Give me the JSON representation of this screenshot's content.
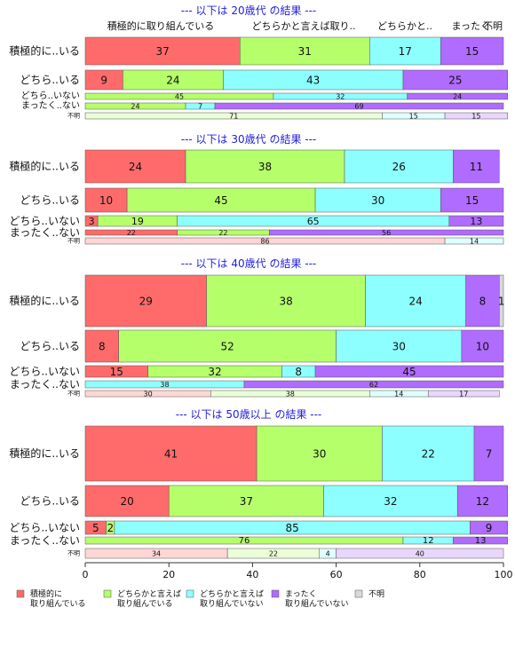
{
  "chart_data": {
    "type": "bar",
    "orientation": "horizontal",
    "stacked": true,
    "column_headers": [
      "積極的に取り組んでいる",
      "どちらかと言えば取り..",
      "どちらかと..",
      "まったく.",
      "不明"
    ],
    "xlim": [
      0,
      100
    ],
    "xticks": [
      0,
      20,
      40,
      60,
      80,
      100
    ],
    "categories": [
      {
        "key": "c1",
        "name": "積極的に取り組んでいる",
        "color": "#ff6b6b"
      },
      {
        "key": "c2",
        "name": "どちらかと言えば取り組んでいる",
        "color": "#b5ff6b"
      },
      {
        "key": "c3",
        "name": "どちらかと言えば取り組んでいない",
        "color": "#8dffff"
      },
      {
        "key": "c4",
        "name": "まったく取り組んでいない",
        "color": "#b06bff"
      },
      {
        "key": "c5",
        "name": "不明",
        "color": "#d9d9d9"
      }
    ],
    "legend": [
      {
        "label_lines": [
          "積極的に",
          "取り組んでいる"
        ],
        "color": "#ff6b6b"
      },
      {
        "label_lines": [
          "どちらかと言えば",
          "取り組んでいる"
        ],
        "color": "#b5ff6b"
      },
      {
        "label_lines": [
          "どちらかと言えば",
          "取り組んでいない"
        ],
        "color": "#8dffff"
      },
      {
        "label_lines": [
          "まったく",
          "取り組んでいない"
        ],
        "color": "#b06bff"
      },
      {
        "label_lines": [
          "不明"
        ],
        "color": "#d9d9d9"
      }
    ],
    "panels": [
      {
        "title": "--- 以下は 20歳代 の結果 ---",
        "rows": [
          {
            "label": "積極的に..いる",
            "values": [
              37,
              31,
              17,
              15,
              0
            ],
            "labels": [
              "37",
              "31",
              "17",
              "15",
              ""
            ]
          },
          {
            "label": "どちら..いる",
            "values": [
              9,
              24,
              43,
              25,
              0
            ],
            "labels": [
              "9",
              "24",
              "43",
              "25",
              ""
            ]
          },
          {
            "label": "どちら..いない",
            "values": [
              0,
              45,
              32,
              24,
              0
            ],
            "labels": [
              "",
              "45",
              "32",
              "24",
              ""
            ]
          },
          {
            "label": "まったく..ない",
            "values": [
              0,
              24,
              7,
              69,
              0
            ],
            "labels": [
              "",
              "24",
              "7",
              "69",
              ""
            ]
          },
          {
            "label": "不明",
            "values": [
              0,
              71,
              15,
              15,
              0
            ],
            "labels": [
              "",
              "71",
              "15",
              "15",
              ""
            ],
            "pale": true
          }
        ]
      },
      {
        "title": "--- 以下は 30歳代 の結果 ---",
        "rows": [
          {
            "label": "積極的に..いる",
            "values": [
              24,
              38,
              26,
              11,
              0
            ],
            "labels": [
              "24",
              "38",
              "26",
              "11",
              ""
            ]
          },
          {
            "label": "どちら..いる",
            "values": [
              10,
              45,
              30,
              15,
              0
            ],
            "labels": [
              "10",
              "45",
              "30",
              "15",
              ""
            ]
          },
          {
            "label": "どちら..いない",
            "values": [
              3,
              19,
              65,
              13,
              0
            ],
            "labels": [
              "3",
              "19",
              "65",
              "13",
              ""
            ]
          },
          {
            "label": "まったく..ない",
            "values": [
              22,
              22,
              0,
              56,
              0
            ],
            "labels": [
              "22",
              "22",
              "",
              "56",
              ""
            ]
          },
          {
            "label": "不明",
            "values": [
              86,
              0,
              14,
              0,
              0
            ],
            "labels": [
              "86",
              "",
              "14",
              "",
              ""
            ],
            "pale": true
          }
        ]
      },
      {
        "title": "--- 以下は 40歳代 の結果 ---",
        "rows": [
          {
            "label": "積極的に..いる",
            "values": [
              29,
              38,
              24,
              8,
              1
            ],
            "labels": [
              "29",
              "38",
              "24",
              "8",
              "1"
            ]
          },
          {
            "label": "どちら..いる",
            "values": [
              8,
              52,
              30,
              10,
              0
            ],
            "labels": [
              "8",
              "52",
              "30",
              "10",
              ""
            ]
          },
          {
            "label": "どちら..いない",
            "values": [
              15,
              32,
              8,
              45,
              0
            ],
            "labels": [
              "15",
              "32",
              "8",
              "45",
              ""
            ]
          },
          {
            "label": "まったく..ない",
            "values": [
              0,
              0,
              38,
              62,
              0
            ],
            "labels": [
              "",
              "",
              "38",
              "62",
              ""
            ]
          },
          {
            "label": "不明",
            "values": [
              30,
              38,
              14,
              17,
              0
            ],
            "labels": [
              "30",
              "38",
              "14",
              "17",
              ""
            ],
            "pale": true
          }
        ]
      },
      {
        "title": "--- 以下は 50歳以上 の結果 ---",
        "rows": [
          {
            "label": "積極的に..いる",
            "values": [
              41,
              30,
              22,
              7,
              0
            ],
            "labels": [
              "41",
              "30",
              "22",
              "7",
              ""
            ]
          },
          {
            "label": "どちら..いる",
            "values": [
              20,
              37,
              32,
              12,
              0
            ],
            "labels": [
              "20",
              "37",
              "32",
              "12",
              ""
            ]
          },
          {
            "label": "どちら..いない",
            "values": [
              5,
              2,
              85,
              9,
              0
            ],
            "labels": [
              "5",
              "2",
              "85",
              "9",
              ""
            ]
          },
          {
            "label": "まったく..ない",
            "values": [
              0,
              76,
              12,
              13,
              0
            ],
            "labels": [
              "",
              "76",
              "12",
              "13",
              ""
            ]
          },
          {
            "label": "不明",
            "values": [
              34,
              22,
              4,
              40,
              0
            ],
            "labels": [
              "34",
              "22",
              "4",
              "40",
              ""
            ],
            "pale": true
          }
        ]
      }
    ]
  }
}
